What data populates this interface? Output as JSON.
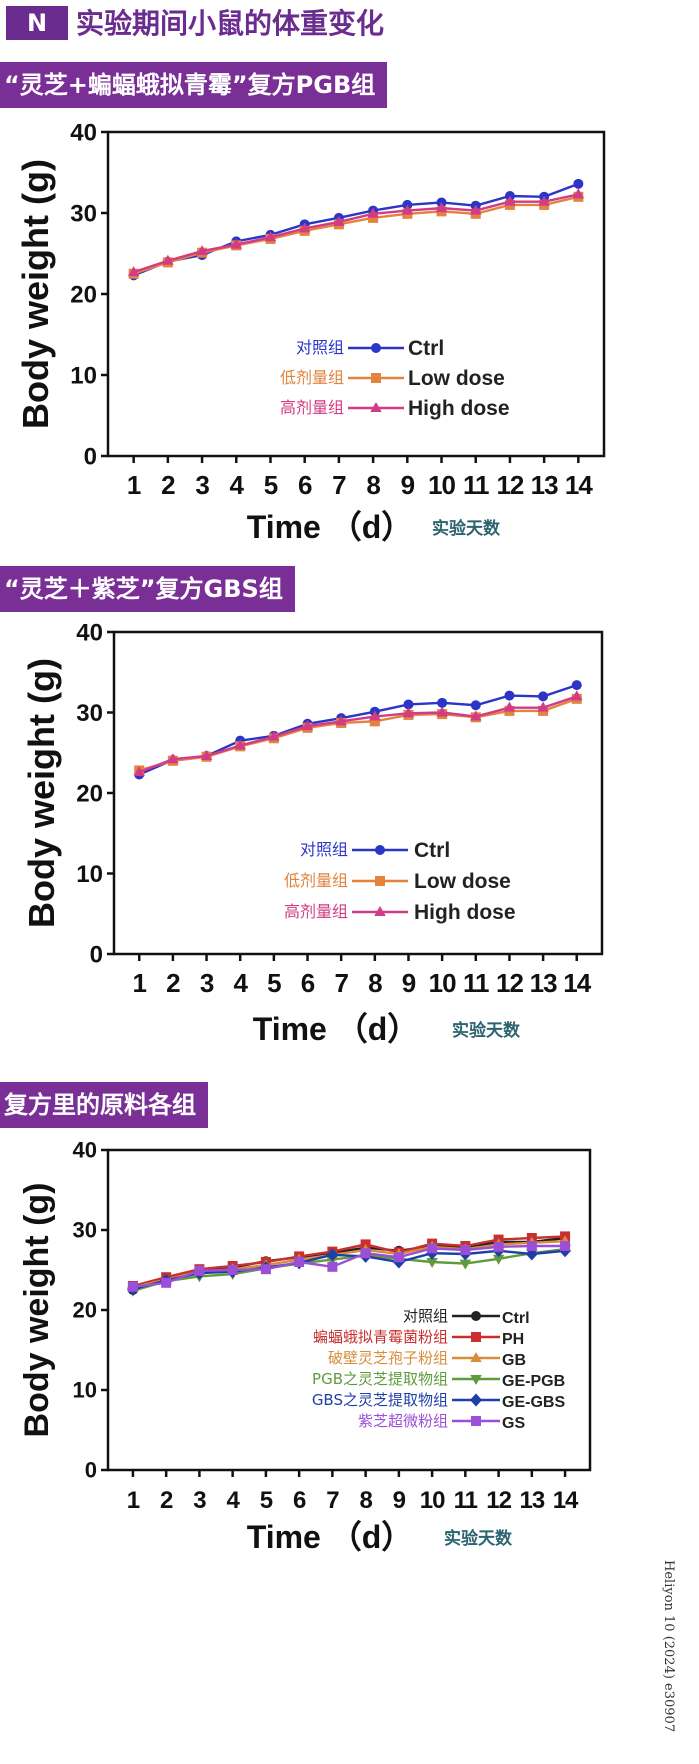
{
  "header": {
    "badge": "N",
    "title": "实验期间小鼠的体重变化"
  },
  "sections": [
    {
      "label": "“灵芝+蝙蝠蛾拟青霉”复方PGB组"
    },
    {
      "label": "“灵芝＋紫芝”复方GBS组"
    },
    {
      "label": "复方里的原料各组"
    }
  ],
  "credit": "Heliyon 10 (2024) e30907",
  "chart_data": [
    {
      "type": "line",
      "x": [
        1,
        2,
        3,
        4,
        5,
        6,
        7,
        8,
        9,
        10,
        11,
        12,
        13,
        14
      ],
      "ylim": [
        0,
        40
      ],
      "yticks": [
        0,
        10,
        20,
        30,
        40
      ],
      "ylabel": "Body weight (g)",
      "xlabel": "Time （d）",
      "xlabel_note": "实验天数",
      "legend_position": "center",
      "series": [
        {
          "name": "Ctrl",
          "cn": "对照组",
          "color": "#2b35c6",
          "marker": "circle",
          "values": [
            22.3,
            24.0,
            24.8,
            26.5,
            27.3,
            28.6,
            29.4,
            30.3,
            31.0,
            31.3,
            30.9,
            32.1,
            32.0,
            33.6
          ]
        },
        {
          "name": "Low dose",
          "cn": "低剂量组",
          "color": "#e3833e",
          "marker": "square",
          "values": [
            22.5,
            23.9,
            25.1,
            26.0,
            26.8,
            27.8,
            28.6,
            29.4,
            29.9,
            30.2,
            29.9,
            31.0,
            31.0,
            32.0
          ]
        },
        {
          "name": "High dose",
          "cn": "高剂量组",
          "color": "#d23b86",
          "marker": "triangle",
          "values": [
            22.7,
            24.1,
            25.3,
            26.1,
            27.0,
            28.1,
            28.9,
            29.9,
            30.3,
            30.6,
            30.3,
            31.4,
            31.4,
            32.3
          ]
        }
      ]
    },
    {
      "type": "line",
      "x": [
        1,
        2,
        3,
        4,
        5,
        6,
        7,
        8,
        9,
        10,
        11,
        12,
        13,
        14
      ],
      "ylim": [
        0,
        40
      ],
      "yticks": [
        0,
        10,
        20,
        30,
        40
      ],
      "ylabel": "Body weight (g)",
      "xlabel": "Time （d）",
      "xlabel_note": "实验天数",
      "legend_position": "center",
      "series": [
        {
          "name": "Ctrl",
          "cn": "对照组",
          "color": "#2b35c6",
          "marker": "circle",
          "values": [
            22.3,
            24.1,
            24.6,
            26.5,
            27.1,
            28.6,
            29.3,
            30.1,
            31.0,
            31.2,
            30.9,
            32.1,
            32.0,
            33.4
          ]
        },
        {
          "name": "Low dose",
          "cn": "低剂量组",
          "color": "#e3833e",
          "marker": "square",
          "values": [
            22.8,
            24.0,
            24.5,
            25.8,
            26.8,
            28.1,
            28.7,
            28.9,
            29.7,
            29.8,
            29.4,
            30.2,
            30.2,
            31.7
          ]
        },
        {
          "name": "High dose",
          "cn": "高剂量组",
          "color": "#d23b86",
          "marker": "triangle",
          "values": [
            22.6,
            24.2,
            24.6,
            25.9,
            27.0,
            28.3,
            28.9,
            29.5,
            29.9,
            30.0,
            29.5,
            30.6,
            30.6,
            32.0
          ]
        }
      ]
    },
    {
      "type": "line",
      "x": [
        1,
        2,
        3,
        4,
        5,
        6,
        7,
        8,
        9,
        10,
        11,
        12,
        13,
        14
      ],
      "ylim": [
        0,
        40
      ],
      "yticks": [
        0,
        10,
        20,
        30,
        40
      ],
      "ylabel": "Body weight (g)",
      "xlabel": "Time （d）",
      "xlabel_note": "实验天数",
      "legend_position": "bottom-right",
      "series": [
        {
          "name": "Ctrl",
          "cn": "对照组",
          "color": "#222222",
          "marker": "circle",
          "values": [
            22.5,
            24.0,
            25.0,
            25.3,
            26.1,
            26.6,
            27.1,
            27.8,
            27.4,
            28.0,
            27.8,
            28.5,
            28.5,
            29.0
          ]
        },
        {
          "name": "PH",
          "cn": "蝙蝠蛾拟青霉菌粉组",
          "color": "#c8302f",
          "marker": "square",
          "values": [
            23.0,
            24.1,
            25.1,
            25.5,
            26.0,
            26.7,
            27.3,
            28.2,
            27.2,
            28.3,
            28.0,
            28.8,
            29.0,
            29.2
          ]
        },
        {
          "name": "GB",
          "cn": "破壁灵芝孢子粉组",
          "color": "#d98c3a",
          "marker": "triangle",
          "values": [
            22.8,
            23.8,
            24.8,
            25.1,
            25.6,
            26.3,
            26.9,
            27.5,
            27.0,
            27.9,
            27.6,
            28.2,
            28.4,
            28.6
          ]
        },
        {
          "name": "GE-PGB",
          "cn": "PGB之灵芝提取物组",
          "color": "#5f9b3c",
          "marker": "triangle-down",
          "values": [
            22.4,
            23.6,
            24.2,
            24.5,
            25.2,
            25.8,
            26.3,
            26.8,
            26.4,
            26.0,
            25.8,
            26.4,
            27.1,
            27.6
          ]
        },
        {
          "name": "GE-GBS",
          "cn": "GBS之灵芝提取物组",
          "color": "#1f3fa8",
          "marker": "diamond",
          "values": [
            22.6,
            23.7,
            24.6,
            24.8,
            25.3,
            25.9,
            26.9,
            26.7,
            26.0,
            27.1,
            27.0,
            27.4,
            27.0,
            27.4
          ]
        },
        {
          "name": "GS",
          "cn": "紫芝超微粉组",
          "color": "#9b4fd6",
          "marker": "square",
          "values": [
            22.9,
            23.4,
            24.9,
            25.0,
            25.1,
            26.0,
            25.4,
            27.1,
            26.6,
            27.7,
            27.5,
            27.9,
            28.0,
            28.0
          ]
        }
      ]
    }
  ]
}
